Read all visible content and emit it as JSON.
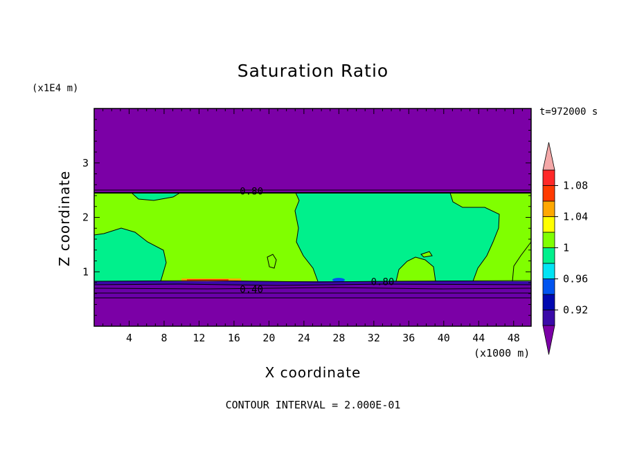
{
  "chart_data": {
    "type": "contour",
    "title": "Saturation Ratio",
    "xlabel": "X coordinate",
    "ylabel": "Z coordinate",
    "x_unit": "(x1000 m)",
    "y_unit": "(x1E4 m)",
    "time_label": "t=972000 s",
    "footer": "CONTOUR INTERVAL = 2.000E-01",
    "xlim": [
      0,
      50
    ],
    "ylim": [
      0,
      4
    ],
    "x_ticks": [
      4,
      8,
      12,
      16,
      20,
      24,
      28,
      32,
      36,
      40,
      44,
      48
    ],
    "y_ticks": [
      1,
      2,
      3
    ],
    "contour_labels": [
      {
        "text": "0.80",
        "x": 18,
        "z": 2.48
      },
      {
        "text": "0.80",
        "x": 33,
        "z": 0.82
      },
      {
        "text": "0.40",
        "x": 18,
        "z": 0.68
      }
    ],
    "colorbar": {
      "levels": [
        0.9,
        0.92,
        0.94,
        0.96,
        0.98,
        1.0,
        1.02,
        1.04,
        1.06,
        1.08,
        1.1
      ],
      "tick_labels": [
        "0.92",
        "0.96",
        "1",
        "1.04",
        "1.08"
      ],
      "colors": [
        "#7b00a6",
        "#3a0aa8",
        "#0008b0",
        "#0054f0",
        "#00e4f4",
        "#00f08c",
        "#80ff00",
        "#ffff00",
        "#ffa800",
        "#ff3a00",
        "#ff2828",
        "#f4a8a8"
      ]
    }
  }
}
